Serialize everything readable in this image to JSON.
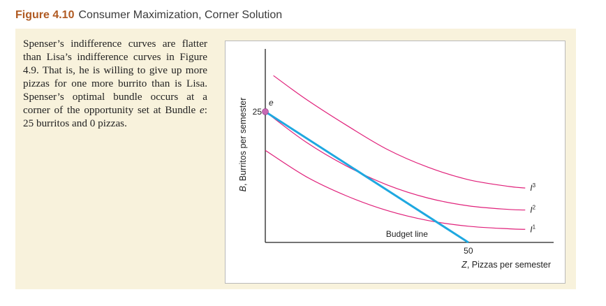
{
  "figure": {
    "number": "Figure 4.10",
    "title": "Consumer Maximization, Corner Solution"
  },
  "caption": {
    "part1": "Spenser’s indifference curves are flatter than Lisa’s indifference curves in Figure 4.9. That is, he is willing to give up more pizzas for one more burrito than is Lisa. Spenser’s optimal bundle occurs at a corner of the opportunity set at Bundle ",
    "bundle_letter": "e",
    "part2": ": 25 burritos and 0 pizzas."
  },
  "colors": {
    "accent": "#b05a22",
    "panel_background": "#f8f2dc",
    "budget_line": "#1ea8e0",
    "indifference_curves": "#e0207a",
    "optimal_point": "#c86ab4"
  },
  "chart_data": {
    "type": "line",
    "xlabel_var": "Z",
    "xlabel_rest": ", Pizzas per semester",
    "ylabel_var": "B",
    "ylabel_rest": ", Burritos per semester",
    "x_ticks": [
      50
    ],
    "y_ticks": [
      25
    ],
    "xlim": [
      0,
      71
    ],
    "ylim": [
      0,
      37
    ],
    "grid": false,
    "budget_line": {
      "label": "Budget line",
      "points": [
        [
          0,
          25
        ],
        [
          50,
          0
        ]
      ]
    },
    "indifference_curves": [
      {
        "name_base": "I",
        "name_sup": "1",
        "points": [
          [
            0,
            17.6
          ],
          [
            10,
            12.6
          ],
          [
            20,
            8.9
          ],
          [
            30,
            6.1
          ],
          [
            40,
            4.2
          ],
          [
            50,
            3.1
          ],
          [
            60,
            2.6
          ],
          [
            64,
            2.5
          ]
        ]
      },
      {
        "name_base": "I",
        "name_sup": "2",
        "points": [
          [
            0,
            25
          ],
          [
            10,
            19.2
          ],
          [
            20,
            14.6
          ],
          [
            30,
            11.0
          ],
          [
            40,
            8.5
          ],
          [
            50,
            7.0
          ],
          [
            60,
            6.3
          ],
          [
            64,
            6.2
          ]
        ]
      },
      {
        "name_base": "I",
        "name_sup": "3",
        "points": [
          [
            2,
            31.9
          ],
          [
            10,
            27.4
          ],
          [
            20,
            22.4
          ],
          [
            30,
            17.8
          ],
          [
            40,
            14.4
          ],
          [
            50,
            12.0
          ],
          [
            60,
            10.7
          ],
          [
            64,
            10.4
          ]
        ]
      }
    ],
    "optimal_point": {
      "label": "e",
      "x": 0,
      "y": 25
    }
  }
}
